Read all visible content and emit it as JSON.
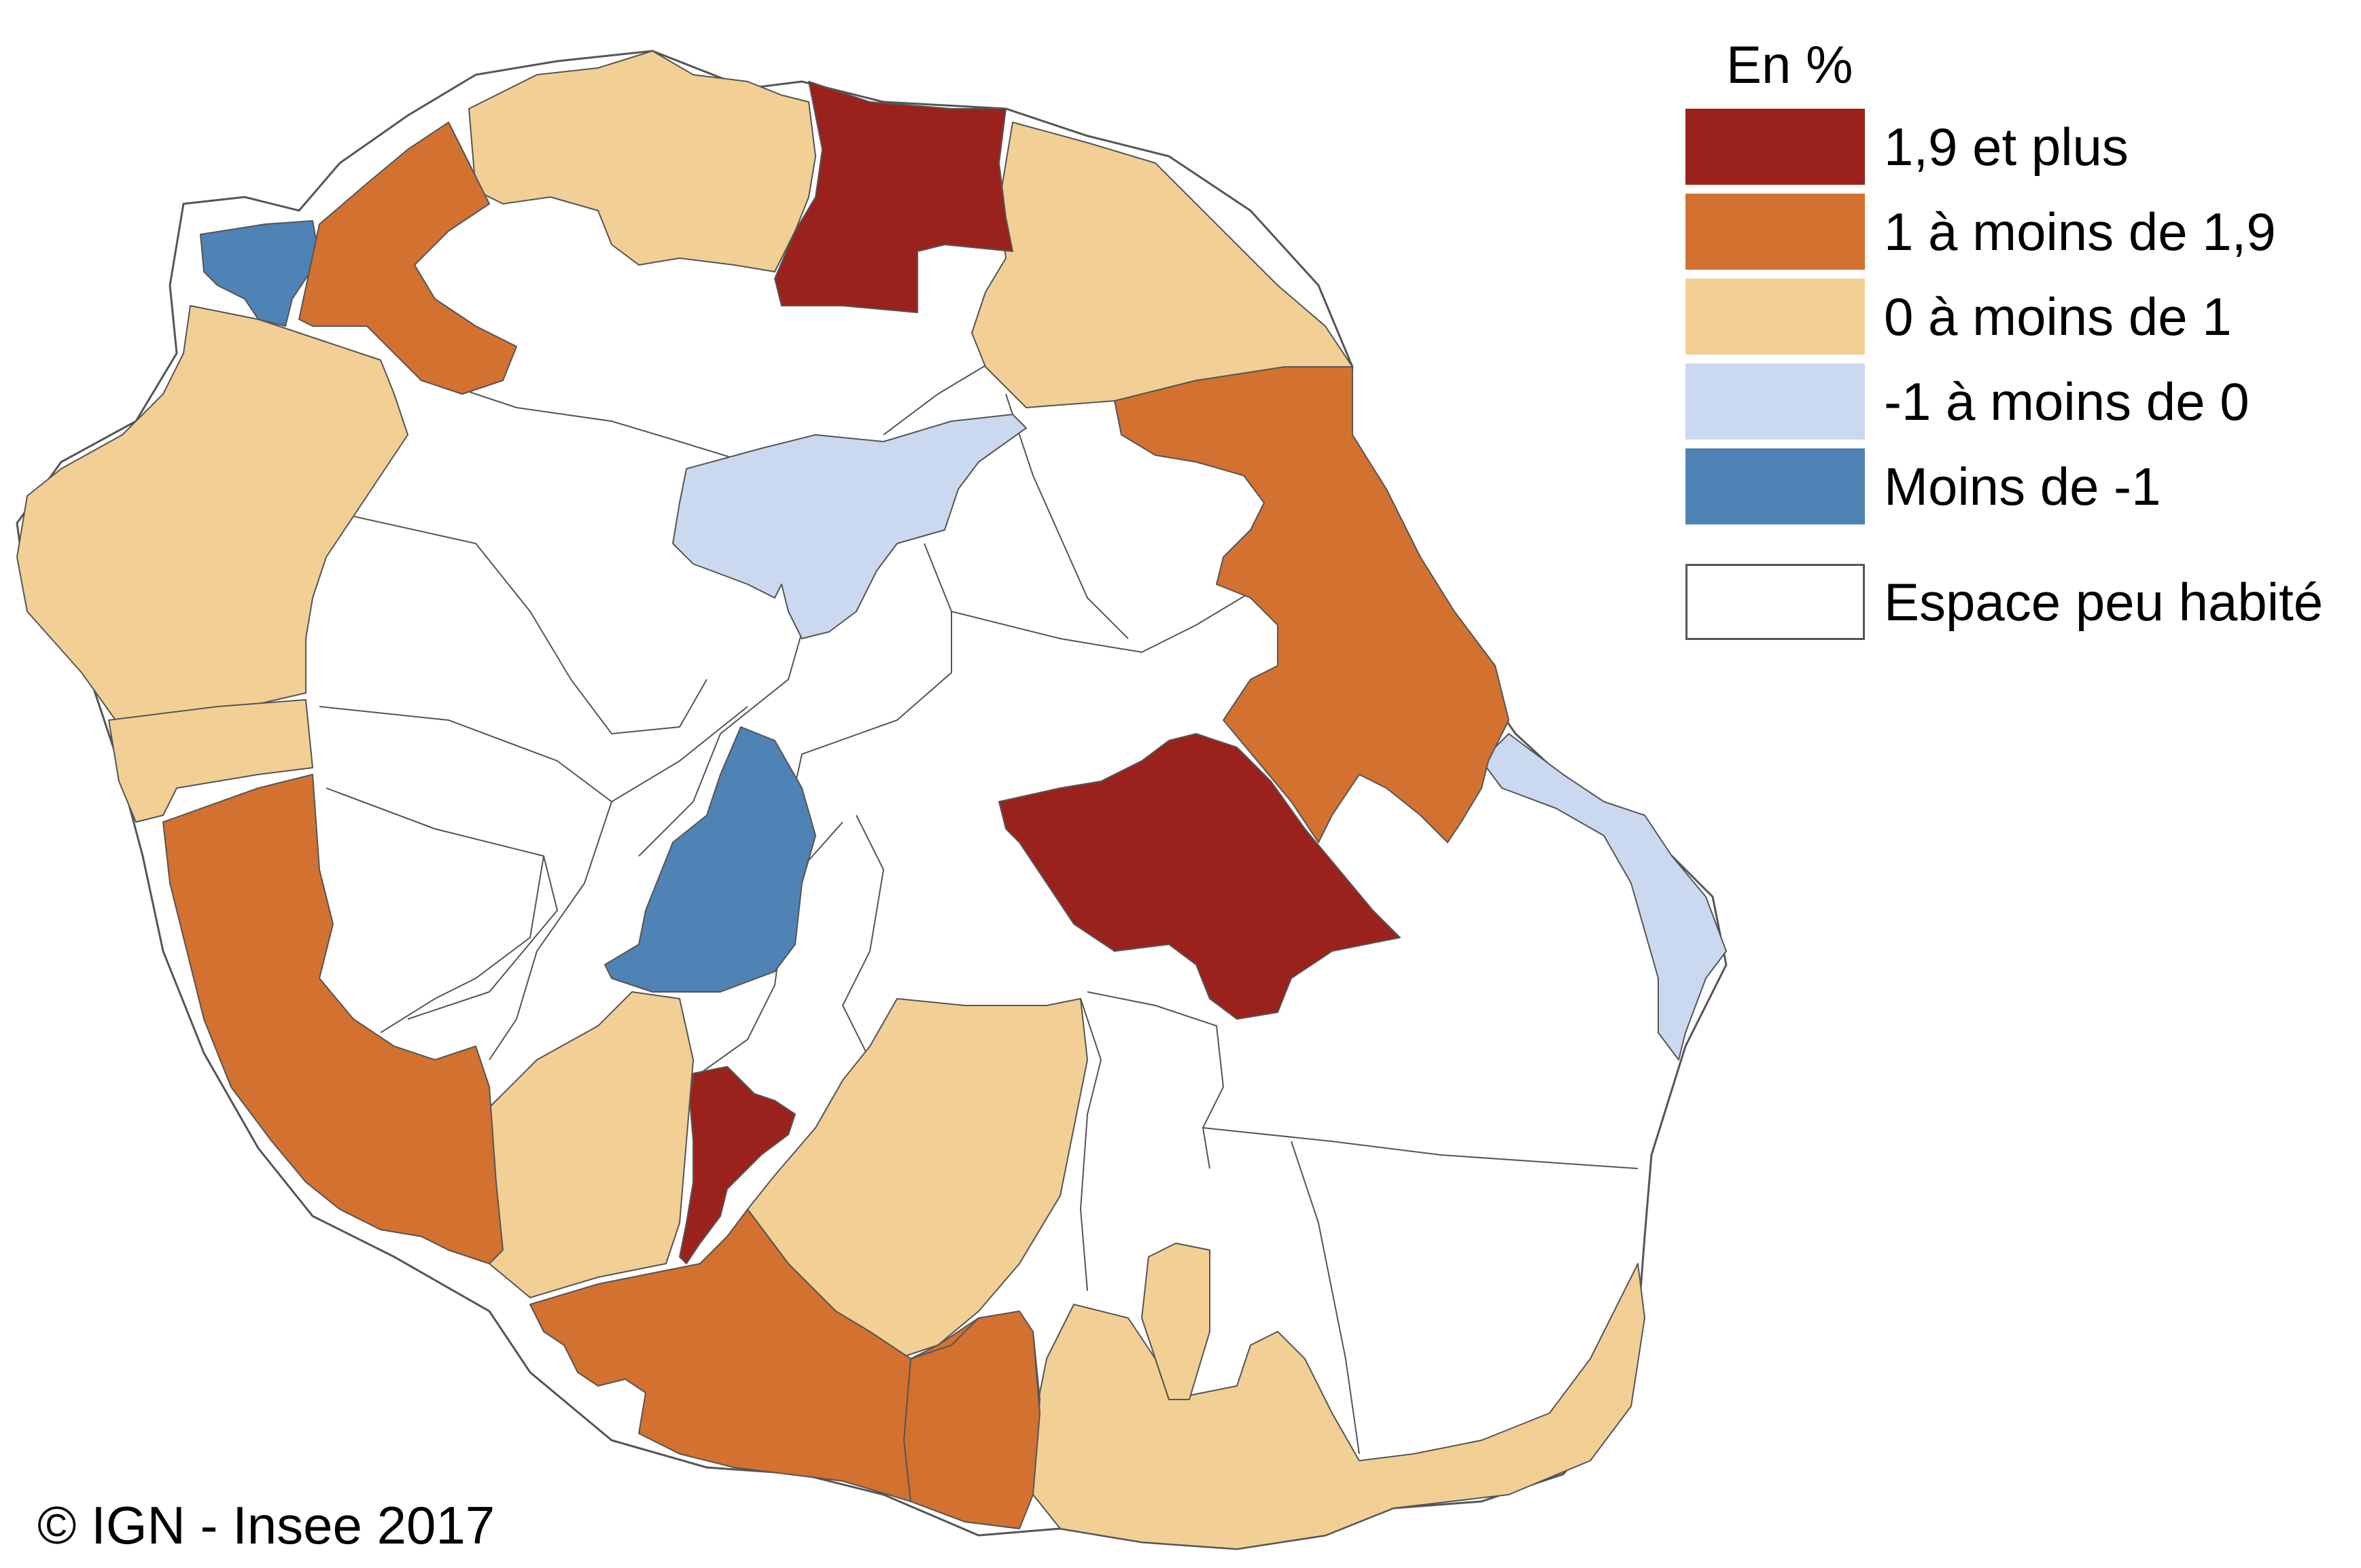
{
  "legend": {
    "title": "En %",
    "classes": [
      {
        "label": "1,9 et plus",
        "color": "#9b221c"
      },
      {
        "label": "1 à moins de 1,9",
        "color": "#d37130"
      },
      {
        "label": "0 à moins de 1",
        "color": "#f2cf95"
      },
      {
        "label": "-1 à moins de 0",
        "color": "#cad9f0"
      },
      {
        "label": "Moins de -1",
        "color": "#4f82b5"
      }
    ],
    "other": {
      "label": "Espace peu habité",
      "color": "#ffffff"
    }
  },
  "copyright": "© IGN - Insee 2017"
}
